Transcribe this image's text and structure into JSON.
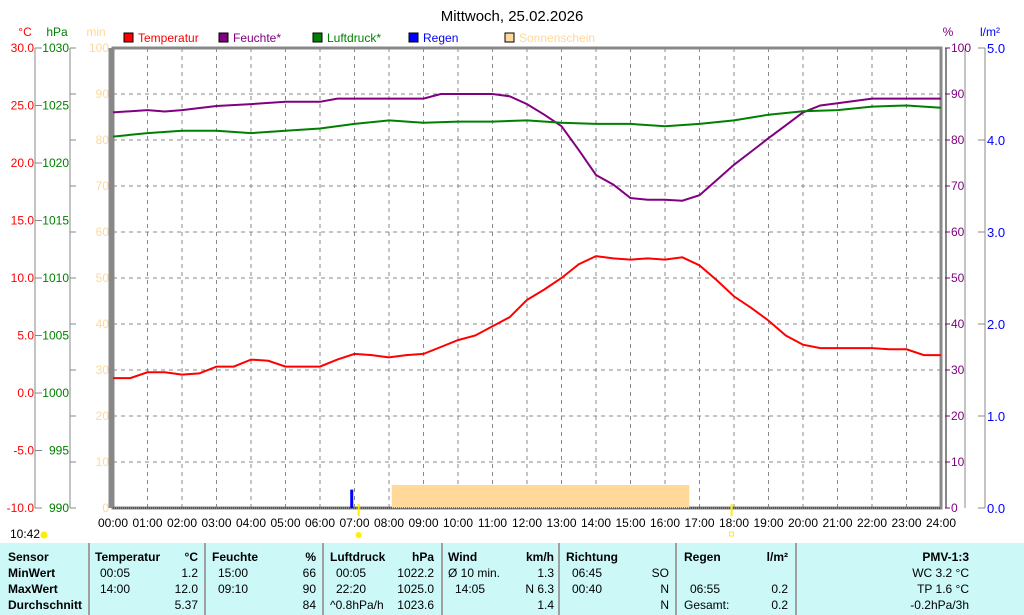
{
  "title": "Mittwoch, 25.02.2026",
  "axes": {
    "temp_unit": "°C",
    "pressure_unit": "hPa",
    "sun_unit": "min",
    "humidity_unit": "%",
    "rain_unit": "l/m²",
    "temp_ticks": [
      "30.0",
      "25.0",
      "20.0",
      "15.0",
      "10.0",
      "5.0",
      "0.0",
      "-5.0",
      "-10.0"
    ],
    "pressure_ticks": [
      "1030",
      "1025",
      "1020",
      "1015",
      "1010",
      "1005",
      "1000",
      "995",
      "990"
    ],
    "sun_ticks": [
      "100",
      "90",
      "80",
      "70",
      "60",
      "50",
      "40",
      "30",
      "20",
      "10",
      "0"
    ],
    "humidity_ticks": [
      "100",
      "90",
      "80",
      "70",
      "60",
      "50",
      "40",
      "30",
      "20",
      "10",
      "0"
    ],
    "rain_ticks": [
      "5.0",
      "4.0",
      "3.0",
      "2.0",
      "1.0",
      "0.0"
    ],
    "time_ticks": [
      "00:00",
      "01:00",
      "02:00",
      "03:00",
      "04:00",
      "05:00",
      "06:00",
      "07:00",
      "08:00",
      "09:00",
      "10:00",
      "11:00",
      "12:00",
      "13:00",
      "14:00",
      "15:00",
      "16:00",
      "17:00",
      "18:00",
      "19:00",
      "20:00",
      "21:00",
      "22:00",
      "23:00",
      "24:00"
    ]
  },
  "legend": [
    {
      "label": "Temperatur",
      "color": "#ff0000"
    },
    {
      "label": "Feuchte*",
      "color": "#800080"
    },
    {
      "label": "Luftdruck*",
      "color": "#008000"
    },
    {
      "label": "Regen",
      "color": "#0000ff"
    },
    {
      "label": "Sonnenschein",
      "color": "#ffd89a"
    }
  ],
  "current_time": "10:42",
  "chart_data": {
    "type": "line",
    "x_unit": "hours",
    "xlim": [
      0,
      24
    ],
    "series": [
      {
        "name": "Temperatur",
        "axis": "°C",
        "ylim": [
          -10,
          30
        ],
        "color": "#ff0000",
        "points": [
          [
            0,
            1.3
          ],
          [
            0.5,
            1.3
          ],
          [
            1,
            1.8
          ],
          [
            1.5,
            1.8
          ],
          [
            2,
            1.6
          ],
          [
            2.5,
            1.7
          ],
          [
            3,
            2.3
          ],
          [
            3.5,
            2.3
          ],
          [
            4,
            2.9
          ],
          [
            4.5,
            2.8
          ],
          [
            5,
            2.3
          ],
          [
            5.5,
            2.3
          ],
          [
            6,
            2.3
          ],
          [
            6.5,
            2.9
          ],
          [
            7,
            3.4
          ],
          [
            7.5,
            3.3
          ],
          [
            8,
            3.1
          ],
          [
            8.5,
            3.3
          ],
          [
            9,
            3.4
          ],
          [
            9.5,
            4.0
          ],
          [
            10,
            4.6
          ],
          [
            10.5,
            5.0
          ],
          [
            11,
            5.8
          ],
          [
            11.5,
            6.6
          ],
          [
            12,
            8.1
          ],
          [
            12.5,
            9.0
          ],
          [
            13,
            10.0
          ],
          [
            13.5,
            11.2
          ],
          [
            14,
            11.9
          ],
          [
            14.5,
            11.7
          ],
          [
            15,
            11.6
          ],
          [
            15.5,
            11.7
          ],
          [
            16,
            11.6
          ],
          [
            16.5,
            11.8
          ],
          [
            17,
            11.1
          ],
          [
            17.5,
            9.8
          ],
          [
            18,
            8.4
          ],
          [
            18.5,
            7.4
          ],
          [
            19,
            6.3
          ],
          [
            19.5,
            5.0
          ],
          [
            20,
            4.2
          ],
          [
            20.5,
            3.9
          ],
          [
            21,
            3.9
          ],
          [
            22,
            3.9
          ],
          [
            22.5,
            3.8
          ],
          [
            23,
            3.8
          ],
          [
            23.5,
            3.3
          ],
          [
            24,
            3.3
          ]
        ]
      },
      {
        "name": "Feuchte*",
        "axis": "%",
        "ylim": [
          0,
          100
        ],
        "color": "#800080",
        "points": [
          [
            0,
            86
          ],
          [
            1,
            86.5
          ],
          [
            1.5,
            86.2
          ],
          [
            2,
            86.5
          ],
          [
            3,
            87.4
          ],
          [
            4,
            87.8
          ],
          [
            5,
            88.3
          ],
          [
            6,
            88.3
          ],
          [
            6.5,
            89
          ],
          [
            9,
            89
          ],
          [
            9.5,
            90
          ],
          [
            11,
            90
          ],
          [
            11.5,
            89.5
          ],
          [
            12,
            87.8
          ],
          [
            12.5,
            85.5
          ],
          [
            13,
            83
          ],
          [
            13.5,
            77.8
          ],
          [
            14,
            72.4
          ],
          [
            14.5,
            70.3
          ],
          [
            15,
            67.4
          ],
          [
            15.5,
            67
          ],
          [
            16,
            67
          ],
          [
            16.5,
            66.8
          ],
          [
            17,
            68
          ],
          [
            17.5,
            71.3
          ],
          [
            18,
            74.6
          ],
          [
            18.5,
            77.5
          ],
          [
            19,
            80.4
          ],
          [
            19.5,
            83.2
          ],
          [
            20,
            86
          ],
          [
            20.5,
            87.5
          ],
          [
            21,
            88
          ],
          [
            22,
            89
          ],
          [
            24,
            89
          ]
        ]
      },
      {
        "name": "Luftdruck*",
        "axis": "hPa",
        "ylim": [
          990,
          1030
        ],
        "color": "#008000",
        "points": [
          [
            0,
            1022.3
          ],
          [
            1,
            1022.6
          ],
          [
            2,
            1022.8
          ],
          [
            3,
            1022.8
          ],
          [
            4,
            1022.6
          ],
          [
            5,
            1022.8
          ],
          [
            6,
            1023.0
          ],
          [
            7,
            1023.4
          ],
          [
            8,
            1023.7
          ],
          [
            9,
            1023.5
          ],
          [
            10,
            1023.6
          ],
          [
            11,
            1023.6
          ],
          [
            12,
            1023.7
          ],
          [
            13,
            1023.5
          ],
          [
            14,
            1023.4
          ],
          [
            15,
            1023.4
          ],
          [
            16,
            1023.2
          ],
          [
            17,
            1023.4
          ],
          [
            18,
            1023.7
          ],
          [
            19,
            1024.2
          ],
          [
            20,
            1024.5
          ],
          [
            21,
            1024.6
          ],
          [
            22,
            1024.9
          ],
          [
            23,
            1025.0
          ],
          [
            24,
            1024.8
          ]
        ]
      }
    ],
    "rain": {
      "name": "Regen",
      "axis": "l/m²",
      "ylim": [
        0,
        5
      ],
      "color": "#0000ff",
      "bars": [
        [
          6.92,
          0.2
        ]
      ]
    },
    "sunshine": {
      "name": "Sonnenschein",
      "axis": "min",
      "ylim": [
        0,
        100
      ],
      "color": "#ffd89a",
      "start": 8.08,
      "end": 16.67,
      "value": 5
    },
    "sunrise": 7.12,
    "sunset": 17.93
  },
  "table": {
    "sensor": {
      "header": "Sensor",
      "rows": [
        "MinWert",
        "MaxWert",
        "Durchschnitt"
      ]
    },
    "temperatur": {
      "header": "Temperatur",
      "unit": "°C",
      "min_time": "00:05",
      "min": "1.2",
      "max_time": "14:00",
      "max": "12.0",
      "avg": "5.37"
    },
    "feuchte": {
      "header": "Feuchte",
      "unit": "%",
      "min_time": "15:00",
      "min": "66",
      "max_time": "09:10",
      "max": "90",
      "avg": "84"
    },
    "luftdruck": {
      "header": "Luftdruck",
      "unit": "hPa",
      "min_time": "00:05",
      "min": "1022.2",
      "max_time": "22:20",
      "max": "1025.0",
      "trend": "^0.8hPa/h",
      "avg": "1023.6"
    },
    "wind": {
      "header": "Wind",
      "unit": "km/h",
      "row1_label": "Ø 10 min.",
      "row1": "1.3",
      "row2_label": "14:05",
      "row2": "N 6.3",
      "avg": "1.4"
    },
    "richtung": {
      "header": "Richtung",
      "row1_time": "06:45",
      "row1": "SO",
      "row2_time": "00:40",
      "row2": "N",
      "avg": "N"
    },
    "regen": {
      "header": "Regen",
      "unit": "l/m²",
      "row2_time": "06:55",
      "row2": "0.2",
      "total_label": "Gesamt:",
      "total": "0.2"
    },
    "pmv": {
      "header": "PMV-1:3",
      "wc": "WC 3.2 °C",
      "tp": "TP 1.6 °C",
      "trend": "-0.2hPa/3h"
    }
  }
}
